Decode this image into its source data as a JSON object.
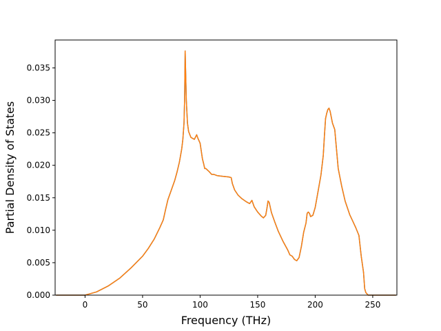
{
  "chart_data": {
    "type": "line",
    "title": "",
    "xlabel": "Frequency (THz)",
    "ylabel": "Partial Density of States",
    "xlim": [
      -26,
      271
    ],
    "ylim": [
      0.0,
      0.0393
    ],
    "grid": false,
    "legend": "none",
    "x_ticks": [
      0,
      50,
      100,
      150,
      200,
      250
    ],
    "y_ticks": [
      0.0,
      0.005,
      0.01,
      0.015,
      0.02,
      0.025,
      0.03,
      0.035
    ],
    "y_tick_labels": [
      "0.000",
      "0.005",
      "0.010",
      "0.015",
      "0.020",
      "0.025",
      "0.030",
      "0.035"
    ],
    "series": [
      {
        "color": "#1f77b4",
        "x": [
          -25,
          0,
          10,
          20,
          30,
          40,
          50,
          55,
          60,
          65,
          68,
          70,
          72,
          75,
          78,
          80,
          82,
          84,
          85,
          86,
          86.5,
          87,
          88,
          89,
          90,
          92,
          95,
          97,
          98,
          100,
          102,
          103,
          104,
          105,
          108,
          110,
          112,
          115,
          120,
          125,
          127,
          128,
          130,
          133,
          136,
          140,
          143,
          145,
          147,
          150,
          153,
          155,
          157,
          158,
          159,
          160,
          162,
          165,
          168,
          172,
          176,
          178,
          180,
          182,
          184,
          186,
          188,
          190,
          192,
          193,
          194,
          195,
          196,
          198,
          200,
          202,
          205,
          207,
          208,
          209,
          210,
          211,
          212,
          213,
          215,
          217,
          218,
          220,
          223,
          226,
          230,
          235,
          238,
          240,
          242,
          243,
          244,
          246,
          250,
          270
        ],
        "y": [
          0.0,
          0.0,
          0.0005,
          0.0014,
          0.0026,
          0.0042,
          0.006,
          0.0072,
          0.0086,
          0.0104,
          0.0116,
          0.0132,
          0.0147,
          0.0162,
          0.0177,
          0.019,
          0.0205,
          0.0225,
          0.024,
          0.0265,
          0.03,
          0.0376,
          0.03,
          0.0265,
          0.0252,
          0.0243,
          0.024,
          0.0247,
          0.0242,
          0.0234,
          0.021,
          0.0203,
          0.0195,
          0.0195,
          0.019,
          0.0186,
          0.0186,
          0.0184,
          0.0183,
          0.0182,
          0.0181,
          0.0172,
          0.0162,
          0.0154,
          0.0149,
          0.0144,
          0.0141,
          0.0146,
          0.0136,
          0.0128,
          0.0122,
          0.0119,
          0.0123,
          0.0133,
          0.0145,
          0.0143,
          0.0127,
          0.0112,
          0.0098,
          0.0083,
          0.007,
          0.0062,
          0.006,
          0.0055,
          0.0053,
          0.0058,
          0.0075,
          0.0097,
          0.0111,
          0.0126,
          0.0128,
          0.0126,
          0.0121,
          0.0123,
          0.0135,
          0.0155,
          0.0185,
          0.0215,
          0.0245,
          0.0272,
          0.028,
          0.0286,
          0.0288,
          0.0283,
          0.0265,
          0.0255,
          0.0235,
          0.0195,
          0.0168,
          0.0145,
          0.0124,
          0.0105,
          0.0092,
          0.006,
          0.0035,
          0.001,
          0.0004,
          0.0,
          0.0,
          0.0
        ]
      },
      {
        "color": "#ff7f0e",
        "x": [
          -25,
          0,
          10,
          20,
          30,
          40,
          50,
          55,
          60,
          65,
          68,
          70,
          72,
          75,
          78,
          80,
          82,
          84,
          85,
          86,
          86.5,
          87,
          88,
          89,
          90,
          92,
          95,
          97,
          98,
          100,
          102,
          103,
          104,
          105,
          108,
          110,
          112,
          115,
          120,
          125,
          127,
          128,
          130,
          133,
          136,
          140,
          143,
          145,
          147,
          150,
          153,
          155,
          157,
          158,
          159,
          160,
          162,
          165,
          168,
          172,
          176,
          178,
          180,
          182,
          184,
          186,
          188,
          190,
          192,
          193,
          194,
          195,
          196,
          198,
          200,
          202,
          205,
          207,
          208,
          209,
          210,
          211,
          212,
          213,
          215,
          217,
          218,
          220,
          223,
          226,
          230,
          235,
          238,
          240,
          242,
          243,
          244,
          246,
          250,
          270
        ],
        "y": [
          0.0,
          0.0,
          0.0005,
          0.0014,
          0.0026,
          0.0042,
          0.006,
          0.0072,
          0.0086,
          0.0104,
          0.0116,
          0.0132,
          0.0147,
          0.0162,
          0.0177,
          0.019,
          0.0205,
          0.0225,
          0.024,
          0.0265,
          0.03,
          0.0376,
          0.03,
          0.0265,
          0.0252,
          0.0243,
          0.024,
          0.0247,
          0.0242,
          0.0234,
          0.021,
          0.0203,
          0.0195,
          0.0195,
          0.019,
          0.0186,
          0.0186,
          0.0184,
          0.0183,
          0.0182,
          0.0181,
          0.0172,
          0.0162,
          0.0154,
          0.0149,
          0.0144,
          0.0141,
          0.0146,
          0.0136,
          0.0128,
          0.0122,
          0.0119,
          0.0123,
          0.0133,
          0.0145,
          0.0143,
          0.0127,
          0.0112,
          0.0098,
          0.0083,
          0.007,
          0.0062,
          0.006,
          0.0055,
          0.0053,
          0.0058,
          0.0075,
          0.0097,
          0.0111,
          0.0126,
          0.0128,
          0.0126,
          0.0121,
          0.0123,
          0.0135,
          0.0155,
          0.0185,
          0.0215,
          0.0245,
          0.0272,
          0.028,
          0.0286,
          0.0288,
          0.0283,
          0.0265,
          0.0255,
          0.0235,
          0.0195,
          0.0168,
          0.0145,
          0.0124,
          0.0105,
          0.0092,
          0.006,
          0.0035,
          0.001,
          0.0004,
          0.0,
          0.0,
          0.0
        ]
      }
    ]
  }
}
